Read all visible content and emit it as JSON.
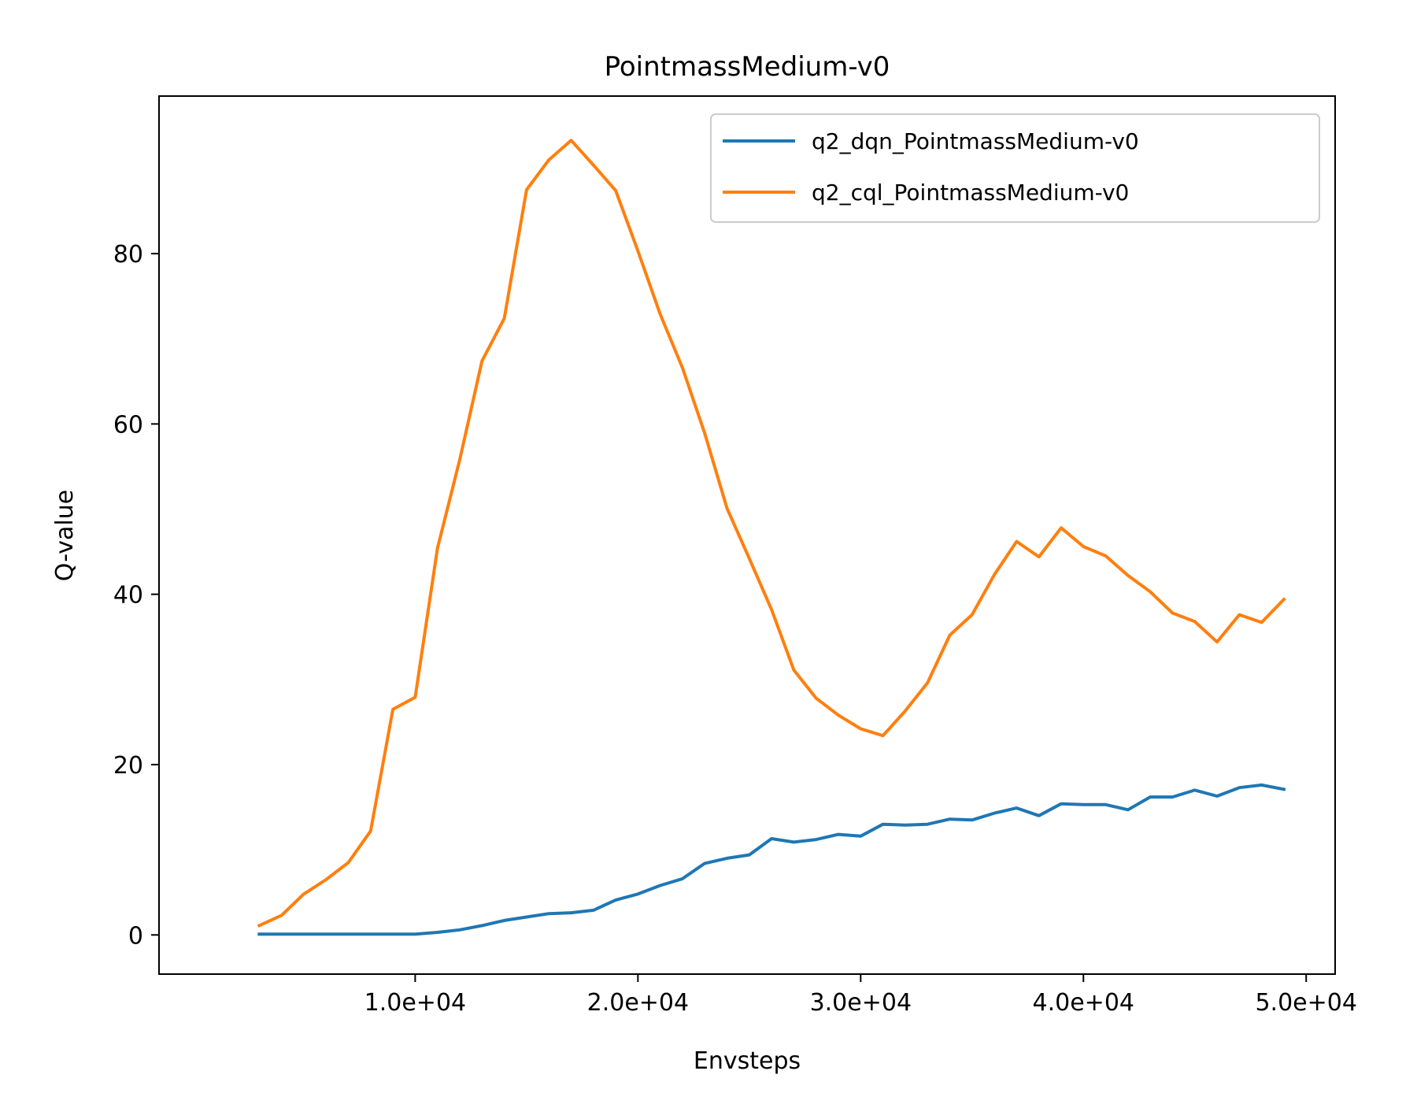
{
  "chart_data": {
    "type": "line",
    "title": "PointmassMedium-v0",
    "xlabel": "Envsteps",
    "ylabel": "Q-value",
    "xlim": [
      -1500,
      51300
    ],
    "ylim": [
      -4.6,
      98.5
    ],
    "xticks": [
      10000,
      20000,
      30000,
      40000,
      50000
    ],
    "xtick_labels": [
      "1.0e+04",
      "2.0e+04",
      "3.0e+04",
      "4.0e+04",
      "5.0e+04"
    ],
    "yticks": [
      0,
      20,
      40,
      60,
      80
    ],
    "ytick_labels": [
      "0",
      "20",
      "40",
      "60",
      "80"
    ],
    "grid": false,
    "legend_position": "top-right",
    "x": [
      3000,
      4000,
      5000,
      6000,
      7000,
      8000,
      9000,
      10000,
      11000,
      12000,
      13000,
      14000,
      15000,
      16000,
      17000,
      18000,
      19000,
      20000,
      21000,
      22000,
      23000,
      24000,
      25000,
      26000,
      27000,
      28000,
      29000,
      30000,
      31000,
      32000,
      33000,
      34000,
      35000,
      36000,
      37000,
      38000,
      39000,
      40000,
      41000,
      42000,
      43000,
      44000,
      45000,
      46000,
      47000,
      48000,
      49000
    ],
    "series": [
      {
        "name": "q2_dqn_PointmassMedium-v0",
        "color": "#1f77b4",
        "values": [
          0.1,
          0.1,
          0.1,
          0.1,
          0.1,
          0.1,
          0.1,
          0.1,
          0.3,
          0.6,
          1.1,
          1.7,
          2.1,
          2.5,
          2.6,
          2.9,
          4.1,
          4.8,
          5.8,
          6.6,
          8.4,
          9.0,
          9.4,
          11.3,
          10.9,
          11.2,
          11.8,
          11.6,
          13.0,
          12.9,
          13.0,
          13.6,
          13.5,
          14.3,
          14.9,
          14.0,
          15.4,
          15.3,
          15.3,
          14.7,
          16.2,
          16.2,
          17.0,
          16.3,
          17.3,
          17.6,
          17.1
        ]
      },
      {
        "name": "q2_cql_PointmassMedium-v0",
        "color": "#ff7f0e",
        "values": [
          1.1,
          2.3,
          4.8,
          6.5,
          8.5,
          12.2,
          26.5,
          27.9,
          45.4,
          55.8,
          67.4,
          72.4,
          87.5,
          91.0,
          93.3,
          90.4,
          87.4,
          80.3,
          72.9,
          66.6,
          58.9,
          50.1,
          44.2,
          38.2,
          31.1,
          27.8,
          25.8,
          24.2,
          23.4,
          26.3,
          29.6,
          35.2,
          37.6,
          42.3,
          46.2,
          44.4,
          47.8,
          45.6,
          44.5,
          42.2,
          40.3,
          37.8,
          36.8,
          34.4,
          37.6,
          36.7,
          39.4
        ]
      }
    ]
  }
}
